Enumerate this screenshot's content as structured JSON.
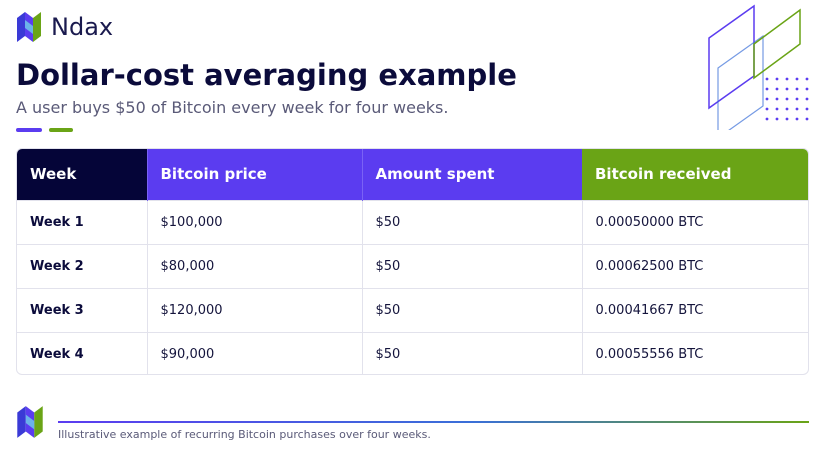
{
  "brand": {
    "name": "Ndax"
  },
  "header": {
    "title": "Dollar-cost averaging example",
    "subtitle": "A user buys $50 of Bitcoin every week for four weeks."
  },
  "colors": {
    "navy": "#050538",
    "purple": "#5b3cf0",
    "green": "#6aa416"
  },
  "table": {
    "headers": [
      "Week",
      "Bitcoin price",
      "Amount spent",
      "Bitcoin received"
    ],
    "rows": [
      [
        "Week 1",
        "$100,000",
        "$50",
        "0.00050000 BTC"
      ],
      [
        "Week 2",
        "$80,000",
        "$50",
        "0.00062500 BTC"
      ],
      [
        "Week 3",
        "$120,000",
        "$50",
        "0.00041667 BTC"
      ],
      [
        "Week 4",
        "$90,000",
        "$50",
        "0.00055556 BTC"
      ]
    ]
  },
  "footer": {
    "caption": "Illustrative example of recurring Bitcoin purchases over four weeks."
  }
}
